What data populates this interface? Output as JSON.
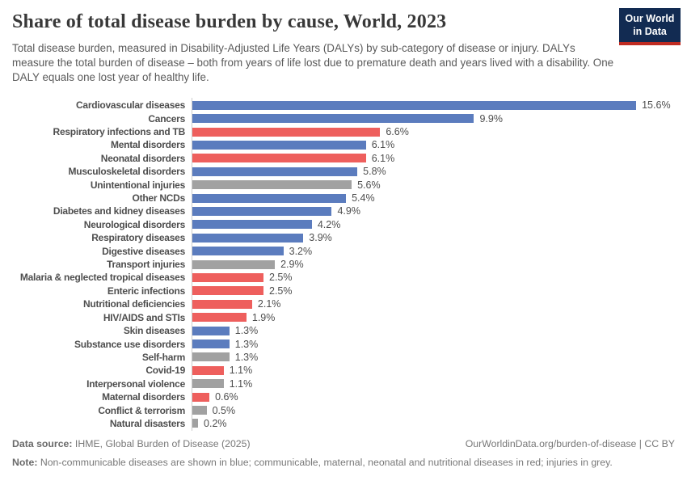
{
  "header": {
    "title": "Share of total disease burden by cause, World, 2023",
    "subtitle": "Total disease burden, measured in Disability-Adjusted Life Years (DALYs) by sub-category of disease or injury. DALYs measure the total burden of disease – both from years of life lost due to premature death and years lived with a disability. One DALY equals one lost year of healthy life.",
    "logo": {
      "line1": "Our World",
      "line2": "in Data",
      "background_color": "#122b52",
      "accent_color": "#bf2b22"
    }
  },
  "chart_data": {
    "type": "bar",
    "orientation": "horizontal",
    "title": "Share of total disease burden by cause, World, 2023",
    "unit": "%",
    "value_suffix": "%",
    "xlim": [
      0,
      15.6
    ],
    "grid": false,
    "legend": "none",
    "categories": [
      "Cardiovascular diseases",
      "Cancers",
      "Respiratory infections and TB",
      "Mental disorders",
      "Neonatal disorders",
      "Musculoskeletal disorders",
      "Unintentional injuries",
      "Other NCDs",
      "Diabetes and kidney diseases",
      "Neurological disorders",
      "Respiratory diseases",
      "Digestive diseases",
      "Transport injuries",
      "Malaria & neglected tropical diseases",
      "Enteric infections",
      "Nutritional deficiencies",
      "HIV/AIDS and STIs",
      "Skin diseases",
      "Substance use disorders",
      "Self-harm",
      "Covid-19",
      "Interpersonal violence",
      "Maternal disorders",
      "Conflict & terrorism",
      "Natural disasters"
    ],
    "values": [
      15.6,
      9.9,
      6.6,
      6.1,
      6.1,
      5.8,
      5.6,
      5.4,
      4.9,
      4.2,
      3.9,
      3.2,
      2.9,
      2.5,
      2.5,
      2.1,
      1.9,
      1.3,
      1.3,
      1.3,
      1.1,
      1.1,
      0.6,
      0.5,
      0.2
    ],
    "groups": [
      "ncd",
      "ncd",
      "communicable",
      "ncd",
      "communicable",
      "ncd",
      "injury",
      "ncd",
      "ncd",
      "ncd",
      "ncd",
      "ncd",
      "injury",
      "communicable",
      "communicable",
      "communicable",
      "communicable",
      "ncd",
      "ncd",
      "injury",
      "communicable",
      "injury",
      "communicable",
      "injury",
      "injury"
    ],
    "group_colors": {
      "ncd": "#5b7cbe",
      "communicable": "#ee5f5d",
      "injury": "#a1a1a1"
    }
  },
  "footer": {
    "datasource_label": "Data source:",
    "datasource_text": " IHME, Global Burden of Disease (2025)",
    "link": "OurWorldinData.org/burden-of-disease | CC BY",
    "note_label": "Note:",
    "note_text": " Non-communicable diseases are shown in blue; communicable, maternal, neonatal and nutritional diseases in red; injuries in grey."
  }
}
